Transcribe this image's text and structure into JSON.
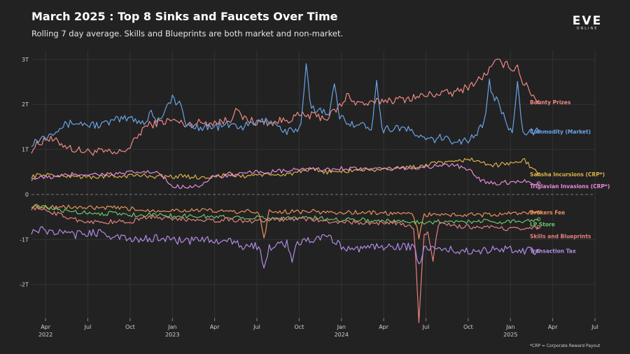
{
  "header": {
    "title": "March 2025 : Top 8 Sinks and Faucets Over Time",
    "subtitle": "Rolling 7 day average. Skills and Blueprints are both market and non-market."
  },
  "logo": {
    "main": "EVE",
    "sub": "ONLINE"
  },
  "footnote": "*CRP = Corporate Reward Payout",
  "chart_data": {
    "type": "line",
    "title": "March 2025 : Top 8 Sinks and Faucets Over Time",
    "xlabel": "",
    "ylabel": "",
    "x_start": "2022-03-01",
    "x_end": "2025-03-31",
    "ylim": [
      -2.75,
      3.2
    ],
    "y_ticks": [
      {
        "value": 3,
        "label": "3T"
      },
      {
        "value": 2,
        "label": "2T"
      },
      {
        "value": 1,
        "label": "1T"
      },
      {
        "value": 0,
        "label": "0"
      },
      {
        "value": -1,
        "label": "-1T"
      },
      {
        "value": -2,
        "label": "-2T"
      }
    ],
    "x_ticks": [
      {
        "month": "2022-04",
        "label": "Apr",
        "year": "2022"
      },
      {
        "month": "2022-07",
        "label": "Jul",
        "year": ""
      },
      {
        "month": "2022-10",
        "label": "Oct",
        "year": ""
      },
      {
        "month": "2023-01",
        "label": "Jan",
        "year": "2023"
      },
      {
        "month": "2023-04",
        "label": "Apr",
        "year": ""
      },
      {
        "month": "2023-07",
        "label": "Jul",
        "year": ""
      },
      {
        "month": "2023-10",
        "label": "Oct",
        "year": ""
      },
      {
        "month": "2024-01",
        "label": "Jan",
        "year": "2024"
      },
      {
        "month": "2024-04",
        "label": "Apr",
        "year": ""
      },
      {
        "month": "2024-07",
        "label": "Jul",
        "year": ""
      },
      {
        "month": "2024-10",
        "label": "Oct",
        "year": ""
      },
      {
        "month": "2025-01",
        "label": "Jan",
        "year": "2025"
      },
      {
        "month": "2025-04",
        "label": "Apr",
        "year": ""
      },
      {
        "month": "2025-07",
        "label": "Jul",
        "year": ""
      }
    ],
    "months": [
      "2022-03",
      "2022-04",
      "2022-05",
      "2022-06",
      "2022-07",
      "2022-08",
      "2022-09",
      "2022-10",
      "2022-11",
      "2022-12",
      "2023-01",
      "2023-02",
      "2023-03",
      "2023-04",
      "2023-05",
      "2023-06",
      "2023-07",
      "2023-08",
      "2023-09",
      "2023-10",
      "2023-11",
      "2023-12",
      "2024-01",
      "2024-02",
      "2024-03",
      "2024-04",
      "2024-05",
      "2024-06",
      "2024-07",
      "2024-08",
      "2024-09",
      "2024-10",
      "2024-11",
      "2024-12",
      "2025-01",
      "2025-02",
      "2025-03"
    ],
    "unit": "ISK trillions (T)",
    "series": [
      {
        "name": "Bounty Prizes",
        "color": "#f08a84",
        "values": [
          1.0,
          1.25,
          1.15,
          1.0,
          0.95,
          0.95,
          0.9,
          1.05,
          1.5,
          1.6,
          1.65,
          1.55,
          1.6,
          1.6,
          1.65,
          1.7,
          1.6,
          1.6,
          1.65,
          1.75,
          1.75,
          1.7,
          2.0,
          2.05,
          2.0,
          2.1,
          2.1,
          2.15,
          2.2,
          2.25,
          2.25,
          2.4,
          2.6,
          2.95,
          2.85,
          2.45,
          2.05
        ]
      },
      {
        "name": "Commodity (Market)",
        "color": "#6aa3e6",
        "values": [
          1.15,
          1.3,
          1.5,
          1.6,
          1.55,
          1.55,
          1.65,
          1.7,
          1.6,
          1.65,
          2.15,
          1.55,
          1.5,
          1.5,
          1.55,
          1.5,
          1.6,
          1.65,
          1.4,
          1.45,
          1.9,
          1.85,
          1.7,
          1.55,
          1.5,
          1.45,
          1.5,
          1.4,
          1.2,
          1.25,
          1.2,
          1.2,
          1.5,
          2.1,
          1.4,
          1.4,
          1.4
        ]
      },
      {
        "name": "Sansha Incursions (CRP*)",
        "color": "#d9b14a",
        "values": [
          0.4,
          0.45,
          0.4,
          0.42,
          0.38,
          0.4,
          0.4,
          0.42,
          0.42,
          0.4,
          0.4,
          0.4,
          0.38,
          0.4,
          0.45,
          0.4,
          0.45,
          0.42,
          0.45,
          0.5,
          0.55,
          0.5,
          0.5,
          0.55,
          0.55,
          0.55,
          0.6,
          0.6,
          0.65,
          0.7,
          0.7,
          0.8,
          0.7,
          0.65,
          0.7,
          0.75,
          0.45
        ]
      },
      {
        "name": "Triglavian Invasions (CRP*)",
        "color": "#e78bd6",
        "values": [
          0.35,
          0.38,
          0.4,
          0.45,
          0.45,
          0.45,
          0.45,
          0.48,
          0.5,
          0.48,
          0.18,
          0.18,
          0.2,
          0.4,
          0.42,
          0.45,
          0.5,
          0.5,
          0.52,
          0.55,
          0.55,
          0.55,
          0.58,
          0.58,
          0.55,
          0.55,
          0.58,
          0.6,
          0.6,
          0.65,
          0.65,
          0.55,
          0.3,
          0.25,
          0.28,
          0.3,
          0.25
        ]
      },
      {
        "name": "Brokers Fee",
        "color": "#e8915a",
        "values": [
          -0.25,
          -0.27,
          -0.28,
          -0.28,
          -0.3,
          -0.3,
          -0.3,
          -0.32,
          -0.35,
          -0.35,
          -0.35,
          -0.35,
          -0.35,
          -0.37,
          -0.38,
          -0.38,
          -0.38,
          -0.38,
          -0.38,
          -0.38,
          -0.38,
          -0.4,
          -0.4,
          -0.4,
          -0.4,
          -0.42,
          -0.42,
          -0.45,
          -0.45,
          -0.45,
          -0.45,
          -0.45,
          -0.45,
          -0.45,
          -0.42,
          -0.4,
          -0.4
        ]
      },
      {
        "name": "LP Store",
        "color": "#6cc46c",
        "values": [
          -0.25,
          -0.3,
          -0.35,
          -0.38,
          -0.4,
          -0.42,
          -0.42,
          -0.45,
          -0.45,
          -0.45,
          -0.48,
          -0.48,
          -0.48,
          -0.5,
          -0.5,
          -0.5,
          -0.52,
          -0.52,
          -0.52,
          -0.52,
          -0.52,
          -0.55,
          -0.55,
          -0.55,
          -0.58,
          -0.58,
          -0.6,
          -0.6,
          -0.62,
          -0.6,
          -0.62,
          -0.6,
          -0.58,
          -0.62,
          -0.6,
          -0.58,
          -0.55
        ]
      },
      {
        "name": "Skills and Blueprints",
        "color": "#e87f7f",
        "values": [
          -0.3,
          -0.35,
          -0.45,
          -0.55,
          -0.6,
          -0.62,
          -0.6,
          -0.62,
          -0.5,
          -0.5,
          -0.55,
          -0.55,
          -0.55,
          -0.58,
          -0.55,
          -0.6,
          -0.58,
          -0.55,
          -0.55,
          -0.55,
          -0.55,
          -0.6,
          -0.6,
          -0.62,
          -0.65,
          -0.62,
          -0.65,
          -0.7,
          -0.9,
          -0.65,
          -0.7,
          -0.72,
          -0.75,
          -0.72,
          -0.78,
          -0.75,
          -0.72
        ]
      },
      {
        "name": "Transaction Tax",
        "color": "#b18be6",
        "values": [
          -0.8,
          -0.8,
          -0.85,
          -0.9,
          -0.85,
          -0.85,
          -0.95,
          -1.0,
          -1.0,
          -0.95,
          -1.0,
          -1.05,
          -1.0,
          -1.0,
          -1.05,
          -1.15,
          -1.15,
          -1.15,
          -1.1,
          -1.05,
          -1.0,
          -0.95,
          -1.15,
          -1.2,
          -1.2,
          -1.15,
          -1.15,
          -1.15,
          -1.2,
          -1.2,
          -1.25,
          -1.25,
          -1.25,
          -1.2,
          -1.2,
          -1.25,
          -1.25
        ]
      }
    ],
    "spikes": [
      {
        "series": "Commodity (Market)",
        "month": "2022-11",
        "value": 1.85
      },
      {
        "series": "Commodity (Market)",
        "month": "2023-01",
        "value": 2.35
      },
      {
        "series": "Commodity (Market)",
        "month": "2023-10",
        "value": 2.65
      },
      {
        "series": "Commodity (Market)",
        "month": "2023-12",
        "value": 2.5
      },
      {
        "series": "Commodity (Market)",
        "month": "2024-03",
        "value": 2.6
      },
      {
        "series": "Commodity (Market)",
        "month": "2024-11",
        "value": 2.25
      },
      {
        "series": "Commodity (Market)",
        "month": "2025-01",
        "value": 2.6
      },
      {
        "series": "Bounty Prizes",
        "month": "2023-05",
        "value": 1.95
      },
      {
        "series": "Bounty Prizes",
        "month": "2024-01",
        "value": 2.25
      },
      {
        "series": "Bounty Prizes",
        "month": "2025-01",
        "value": 3.05
      },
      {
        "series": "Skills and Blueprints",
        "month": "2024-06",
        "value": -2.7
      },
      {
        "series": "Skills and Blueprints",
        "month": "2024-07",
        "value": -1.6
      },
      {
        "series": "Transaction Tax",
        "month": "2023-07",
        "value": -1.65
      },
      {
        "series": "Transaction Tax",
        "month": "2024-06",
        "value": -1.6
      },
      {
        "series": "Transaction Tax",
        "month": "2023-09",
        "value": -1.5
      },
      {
        "series": "Brokers Fee",
        "month": "2023-07",
        "value": -1.0
      },
      {
        "series": "Brokers Fee",
        "month": "2024-06",
        "value": -0.95
      }
    ]
  }
}
